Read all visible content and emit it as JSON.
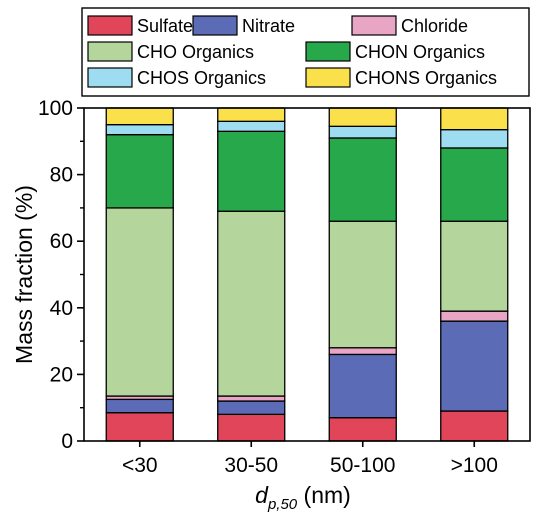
{
  "chart_data": {
    "type": "bar",
    "stacked": true,
    "categories": [
      "<30",
      "30-50",
      "50-100",
      ">100"
    ],
    "ylabel": "Mass fraction (%)",
    "xlabel": {
      "symbol": "d",
      "subscript": "p,50",
      "unit": "(nm)"
    },
    "ylim": [
      0,
      100
    ],
    "yticks": [
      "0",
      "20",
      "40",
      "60",
      "80",
      "100"
    ],
    "legend_position": "top",
    "series": [
      {
        "name": "Sulfate",
        "color": "#e0455a",
        "values": [
          8.5,
          8.0,
          7.0,
          9.0
        ]
      },
      {
        "name": "Nitrate",
        "color": "#5b6bb5",
        "values": [
          4.0,
          4.0,
          19.0,
          27.0
        ]
      },
      {
        "name": "Chloride",
        "color": "#e8a6c4",
        "values": [
          1.0,
          1.5,
          2.0,
          3.0
        ]
      },
      {
        "name": "CHO Organics",
        "color": "#b4d69d",
        "values": [
          56.5,
          55.5,
          38.0,
          27.0
        ]
      },
      {
        "name": "CHON Organics",
        "color": "#27a84a",
        "values": [
          22.0,
          24.0,
          25.0,
          22.0
        ]
      },
      {
        "name": "CHOS Organics",
        "color": "#9edcf2",
        "values": [
          3.0,
          3.0,
          3.5,
          5.5
        ]
      },
      {
        "name": "CHONS Organics",
        "color": "#fae04a",
        "values": [
          5.0,
          4.0,
          5.5,
          6.5
        ]
      }
    ]
  }
}
